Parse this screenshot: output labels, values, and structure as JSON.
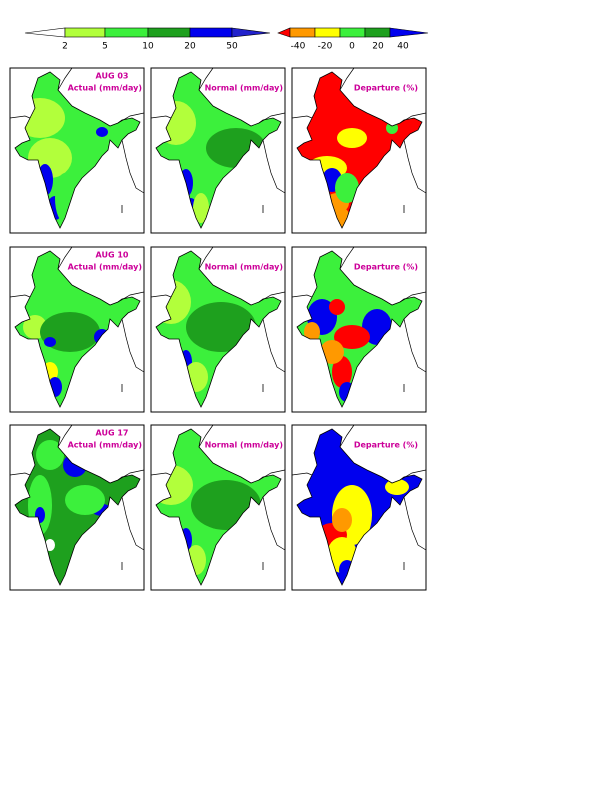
{
  "colorbars": [
    {
      "labels": [
        "2",
        "5",
        "10",
        "20",
        "50"
      ]
    },
    {
      "labels": [
        "-40",
        "-20",
        "0",
        "20",
        "40"
      ]
    }
  ],
  "panels": [
    {
      "date": "AUG 03",
      "title": "Actual (mm/day)"
    },
    {
      "title": "Normal (mm/day)"
    },
    {
      "title": "Departure (%)"
    },
    {
      "date": "AUG 10",
      "title": "Actual (mm/day)"
    },
    {
      "title": "Normal (mm/day)"
    },
    {
      "title": "Departure (%)"
    },
    {
      "date": "AUG 17",
      "title": "Actual (mm/day)"
    },
    {
      "title": "Normal (mm/day)"
    },
    {
      "title": "Departure (%)"
    }
  ]
}
